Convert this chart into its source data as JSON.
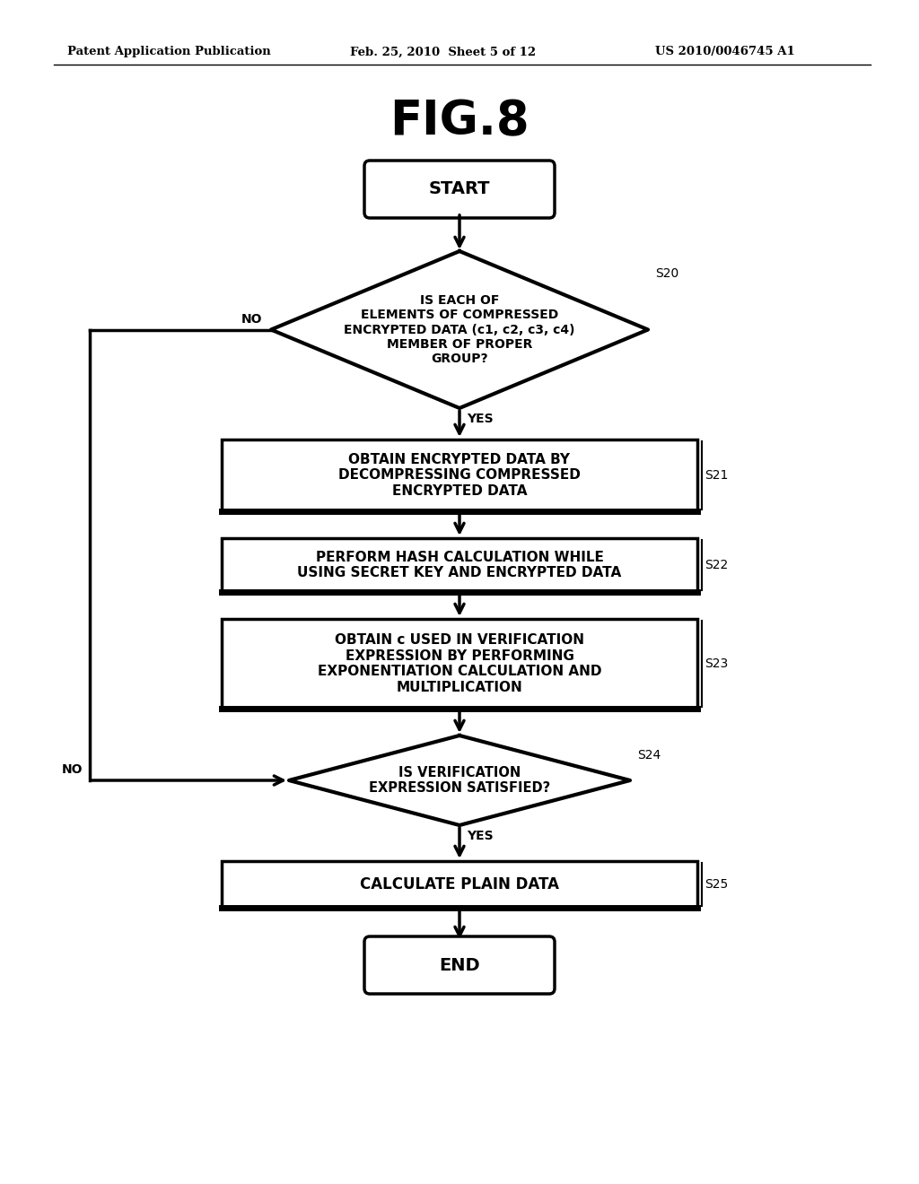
{
  "title": "FIG.8",
  "header_left": "Patent Application Publication",
  "header_mid": "Feb. 25, 2010  Sheet 5 of 12",
  "header_right": "US 2010/0046745 A1",
  "bg_color": "#ffffff",
  "start_label": "START",
  "end_label": "END",
  "s20_label": "IS EACH OF\nELEMENTS OF COMPRESSED\nENCRYPTED DATA (c1, c2, c3, c4)\nMEMBER OF PROPER\nGROUP?",
  "s20_tag": "S20",
  "s21_label": "OBTAIN ENCRYPTED DATA BY\nDECOMPRESSING COMPRESSED\nENCRYPTED DATA",
  "s21_tag": "S21",
  "s22_label": "PERFORM HASH CALCULATION WHILE\nUSING SECRET KEY AND ENCRYPTED DATA",
  "s22_tag": "S22",
  "s23_label": "OBTAIN c USED IN VERIFICATION\nEXPRESSION BY PERFORMING\nEXPONENTIATION CALCULATION AND\nMULTIPLICATION",
  "s23_tag": "S23",
  "s24_label": "IS VERIFICATION\nEXPRESSION SATISFIED?",
  "s24_tag": "S24",
  "s25_label": "CALCULATE PLAIN DATA",
  "s25_tag": "S25",
  "yes_label": "YES",
  "no_label": "NO"
}
